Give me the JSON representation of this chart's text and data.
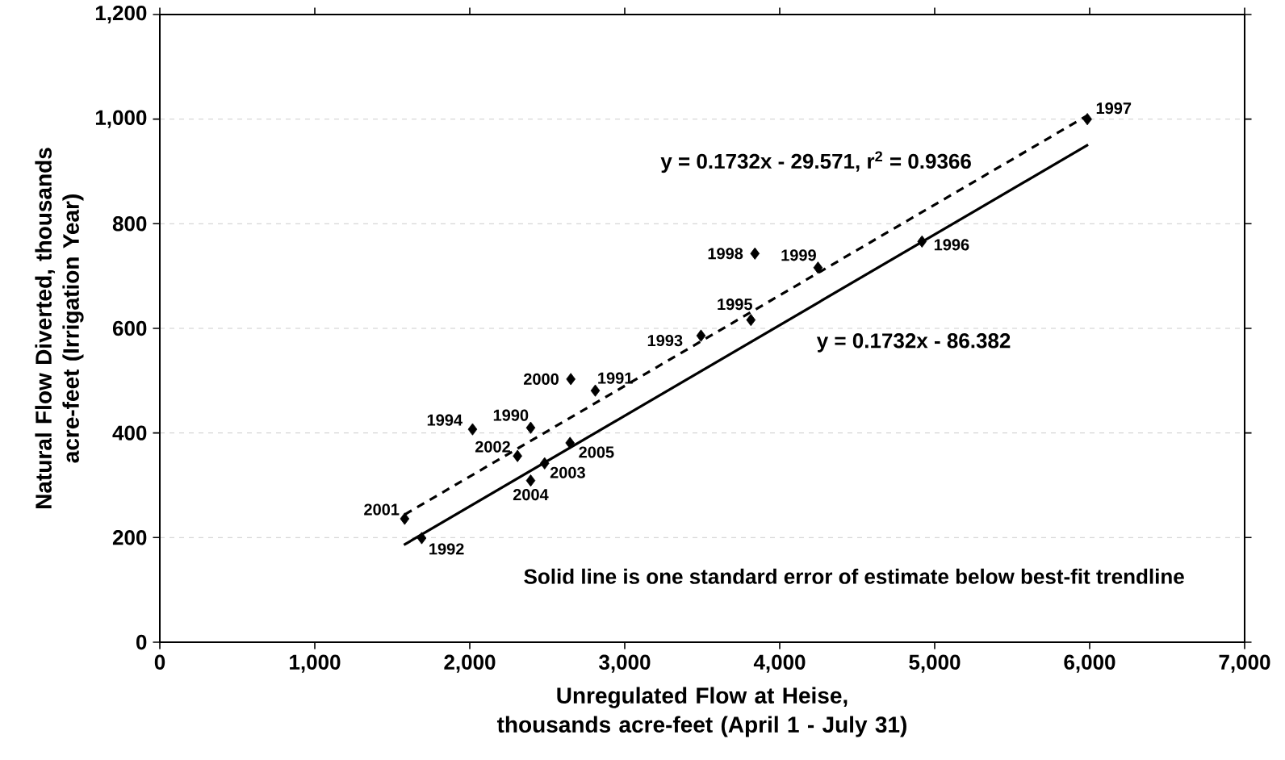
{
  "chart_data": {
    "type": "scatter",
    "xlabel": "Unregulated Flow at Heise, thousands acre-feet (April 1 - July 31)",
    "ylabel": "Natural Flow Diverted, thousands acre-feet (Irrigation Year)",
    "xlim": [
      0,
      7000
    ],
    "ylim": [
      0,
      1200
    ],
    "xticks": [
      0,
      {
        "value": 1000,
        "label": "1,000"
      },
      {
        "value": 2000,
        "label": "2,000"
      },
      {
        "value": 3000,
        "label": "3,000"
      },
      {
        "value": 4000,
        "label": "4,000"
      },
      {
        "value": 5000,
        "label": "5,000"
      },
      {
        "value": 6000,
        "label": "6,000"
      },
      {
        "value": 7000,
        "label": "7,000"
      }
    ],
    "yticks": [
      0,
      200,
      400,
      600,
      800,
      {
        "value": 1000,
        "label": "1,000"
      },
      {
        "value": 1200,
        "label": "1,200"
      }
    ],
    "grid": "y",
    "marker": "diamond",
    "series": [
      {
        "color": "#000000",
        "x": [
          1580,
          1690,
          2018,
          2393,
          2308,
          2393,
          2483,
          2647,
          2652,
          2810,
          3492,
          3814,
          3840,
          4247,
          4918,
          5985
        ],
        "values": [
          236,
          199,
          407,
          410,
          356,
          309,
          342,
          381,
          503,
          481,
          586,
          616,
          743,
          716,
          766,
          1000
        ]
      },
      {
        "type": "line",
        "color": "#000000",
        "line_style": "dashed",
        "marker": "none",
        "x": [
          1580,
          5985
        ],
        "values": [
          244,
          1007
        ]
      },
      {
        "type": "line",
        "color": "#000000",
        "line_style": "solid",
        "marker": "none",
        "x": [
          1575,
          5990
        ],
        "values": [
          186,
          951
        ]
      }
    ],
    "annotations": [
      {
        "text": "2001",
        "x": 1580,
        "y": 236
      },
      {
        "text": "1992",
        "x": 1690,
        "y": 199
      },
      {
        "text": "1994",
        "x": 2018,
        "y": 407
      },
      {
        "text": "1990",
        "x": 2393,
        "y": 410
      },
      {
        "text": "2002",
        "x": 2308,
        "y": 356
      },
      {
        "text": "2004",
        "x": 2393,
        "y": 309
      },
      {
        "text": "2003",
        "x": 2483,
        "y": 342
      },
      {
        "text": "2005",
        "x": 2647,
        "y": 381
      },
      {
        "text": "2000",
        "x": 2652,
        "y": 503
      },
      {
        "text": "1991",
        "x": 2810,
        "y": 481
      },
      {
        "text": "1993",
        "x": 3492,
        "y": 586
      },
      {
        "text": "1995",
        "x": 3814,
        "y": 616
      },
      {
        "text": "1998",
        "x": 3840,
        "y": 743
      },
      {
        "text": "1999",
        "x": 4247,
        "y": 716
      },
      {
        "text": "1996",
        "x": 4918,
        "y": 766
      },
      {
        "text": "1997",
        "x": 5985,
        "y": 1000
      },
      "y = 0.1732x - 29.571, r$^{2}$ = 0.9366",
      "y = 0.1732x - 86.382",
      "Solid line is one standard error of estimate below best-fit trendline"
    ]
  }
}
